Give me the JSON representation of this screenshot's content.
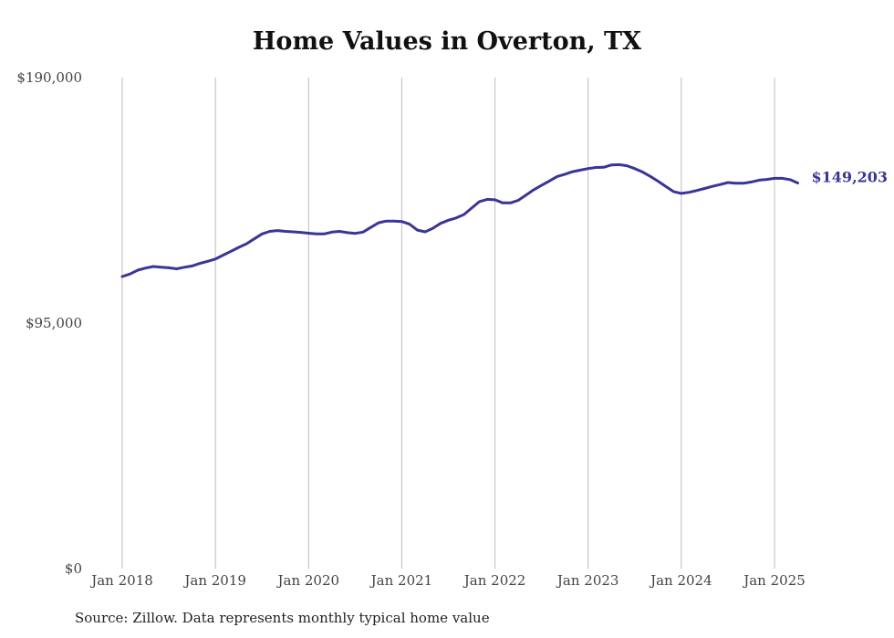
{
  "chart_data": {
    "type": "line",
    "title": "Home Values in Overton, TX",
    "xlabel": "",
    "ylabel": "",
    "x_ticks": [
      "Jan 2018",
      "Jan 2019",
      "Jan 2020",
      "Jan 2021",
      "Jan 2022",
      "Jan 2023",
      "Jan 2024",
      "Jan 2025"
    ],
    "y_ticks": [
      "$0",
      "$95,000",
      "$190,000"
    ],
    "y_tick_values": [
      0,
      95000,
      190000
    ],
    "ylim": [
      0,
      190000
    ],
    "xlim": [
      "2018-01",
      "2025-04"
    ],
    "grid": "vertical lines at x ticks",
    "end_label": "$149,203",
    "line_color": "#3a3596",
    "series": [
      {
        "values": [
          [
            "2018-01",
            113000
          ],
          [
            "2018-02",
            114000
          ],
          [
            "2018-03",
            115500
          ],
          [
            "2018-04",
            116300
          ],
          [
            "2018-05",
            116900
          ],
          [
            "2018-06",
            116600
          ],
          [
            "2018-07",
            116400
          ],
          [
            "2018-08",
            116000
          ],
          [
            "2018-09",
            116600
          ],
          [
            "2018-10",
            117100
          ],
          [
            "2018-11",
            118100
          ],
          [
            "2018-12",
            118900
          ],
          [
            "2019-01",
            119800
          ],
          [
            "2019-02",
            121300
          ],
          [
            "2019-03",
            122800
          ],
          [
            "2019-04",
            124300
          ],
          [
            "2019-05",
            125700
          ],
          [
            "2019-06",
            127600
          ],
          [
            "2019-07",
            129500
          ],
          [
            "2019-08",
            130500
          ],
          [
            "2019-09",
            130800
          ],
          [
            "2019-10",
            130500
          ],
          [
            "2019-11",
            130300
          ],
          [
            "2019-12",
            130100
          ],
          [
            "2020-01",
            129800
          ],
          [
            "2020-02",
            129500
          ],
          [
            "2020-03",
            129500
          ],
          [
            "2020-04",
            130200
          ],
          [
            "2020-05",
            130500
          ],
          [
            "2020-06",
            130000
          ],
          [
            "2020-07",
            129700
          ],
          [
            "2020-08",
            130200
          ],
          [
            "2020-09",
            132000
          ],
          [
            "2020-10",
            133800
          ],
          [
            "2020-11",
            134500
          ],
          [
            "2020-12",
            134500
          ],
          [
            "2021-01",
            134300
          ],
          [
            "2021-02",
            133300
          ],
          [
            "2021-03",
            131000
          ],
          [
            "2021-04",
            130300
          ],
          [
            "2021-05",
            131700
          ],
          [
            "2021-06",
            133600
          ],
          [
            "2021-07",
            134800
          ],
          [
            "2021-08",
            135700
          ],
          [
            "2021-09",
            137000
          ],
          [
            "2021-10",
            139500
          ],
          [
            "2021-11",
            142000
          ],
          [
            "2021-12",
            142900
          ],
          [
            "2022-01",
            142700
          ],
          [
            "2022-02",
            141500
          ],
          [
            "2022-03",
            141500
          ],
          [
            "2022-04",
            142500
          ],
          [
            "2022-05",
            144500
          ],
          [
            "2022-06",
            146600
          ],
          [
            "2022-07",
            148300
          ],
          [
            "2022-08",
            150000
          ],
          [
            "2022-09",
            151700
          ],
          [
            "2022-10",
            152600
          ],
          [
            "2022-11",
            153600
          ],
          [
            "2022-12",
            154200
          ],
          [
            "2023-01",
            154800
          ],
          [
            "2023-02",
            155200
          ],
          [
            "2023-03",
            155300
          ],
          [
            "2023-04",
            156200
          ],
          [
            "2023-05",
            156300
          ],
          [
            "2023-06",
            155900
          ],
          [
            "2023-07",
            154800
          ],
          [
            "2023-08",
            153500
          ],
          [
            "2023-09",
            151800
          ],
          [
            "2023-10",
            149900
          ],
          [
            "2023-11",
            147900
          ],
          [
            "2023-12",
            145900
          ],
          [
            "2024-01",
            145200
          ],
          [
            "2024-02",
            145600
          ],
          [
            "2024-03",
            146300
          ],
          [
            "2024-04",
            147100
          ],
          [
            "2024-05",
            147900
          ],
          [
            "2024-06",
            148600
          ],
          [
            "2024-07",
            149400
          ],
          [
            "2024-08",
            149100
          ],
          [
            "2024-09",
            149100
          ],
          [
            "2024-10",
            149600
          ],
          [
            "2024-11",
            150300
          ],
          [
            "2024-12",
            150600
          ],
          [
            "2025-01",
            151000
          ],
          [
            "2025-02",
            151000
          ],
          [
            "2025-03",
            150500
          ],
          [
            "2025-04",
            149203
          ]
        ]
      }
    ]
  },
  "source_note": "Source: Zillow. Data represents monthly typical home value"
}
